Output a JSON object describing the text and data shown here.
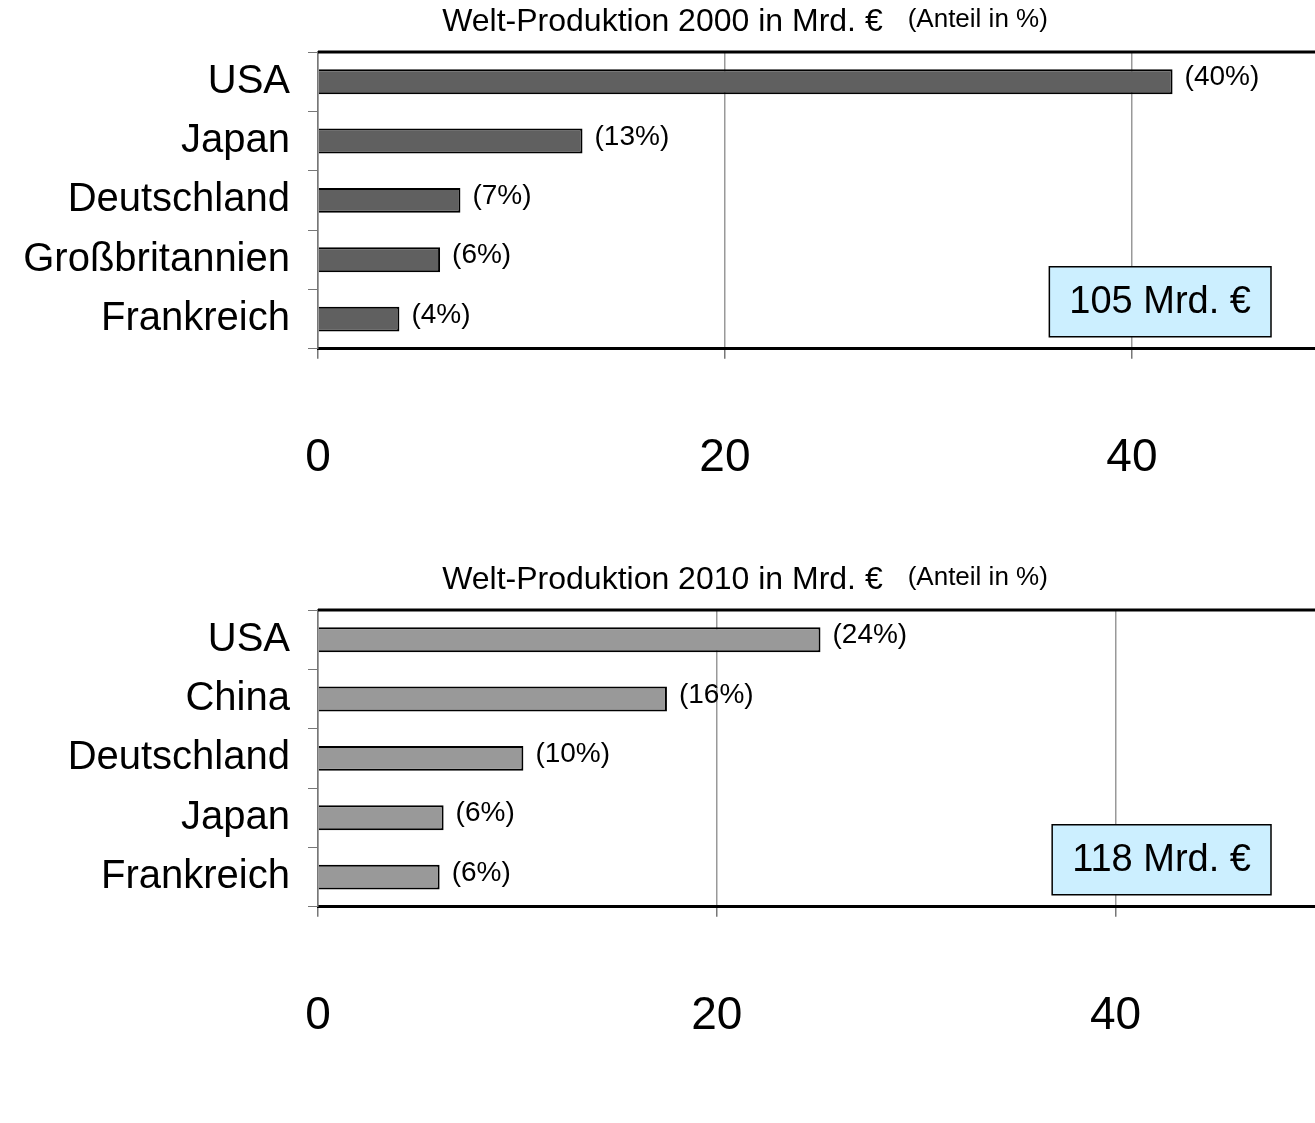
{
  "chart_data": [
    {
      "type": "bar",
      "orientation": "horizontal",
      "title": "Welt-Produktion 2000 in Mrd. €",
      "subtitle": "(Anteil in %)",
      "categories": [
        "USA",
        "Japan",
        "Deutschland",
        "Großbritannien",
        "Frankreich"
      ],
      "values": [
        42,
        13,
        7,
        6,
        4
      ],
      "color": "#606060",
      "xlim": [
        0,
        49
      ],
      "xticks": [
        0,
        20,
        40
      ],
      "grid": "x",
      "legend": false,
      "annotations": [
        {
          "text": "(40%)",
          "x": 42,
          "y": "USA"
        },
        {
          "text": "(13%)",
          "x": 13,
          "y": "Japan"
        },
        {
          "text": "(7%)",
          "x": 7,
          "y": "Deutschland"
        },
        {
          "text": "(6%)",
          "x": 6,
          "y": "Großbritannien"
        },
        {
          "text": "(4%)",
          "x": 4,
          "y": "Frankreich"
        },
        "105 Mrd. €"
      ]
    },
    {
      "type": "bar",
      "orientation": "horizontal",
      "title": "Welt-Produktion 2010 in Mrd. €",
      "subtitle": "(Anteil in %)",
      "categories": [
        "USA",
        "China",
        "Deutschland",
        "Japan",
        "Frankreich"
      ],
      "values": [
        25.2,
        17.5,
        10.3,
        6.3,
        6.1
      ],
      "color": "#999999",
      "xlim": [
        0,
        50
      ],
      "xticks": [
        0,
        20,
        40
      ],
      "grid": "x",
      "legend": false,
      "annotations": [
        {
          "text": "(24%)",
          "x": 25.2,
          "y": "USA"
        },
        {
          "text": "(16%)",
          "x": 17.5,
          "y": "China"
        },
        {
          "text": "(10%)",
          "x": 10.3,
          "y": "Deutschland"
        },
        {
          "text": "(6%)",
          "x": 6.3,
          "y": "Japan"
        },
        {
          "text": "(6%)",
          "x": 6.1,
          "y": "Frankreich"
        },
        "118 Mrd. €"
      ]
    }
  ]
}
